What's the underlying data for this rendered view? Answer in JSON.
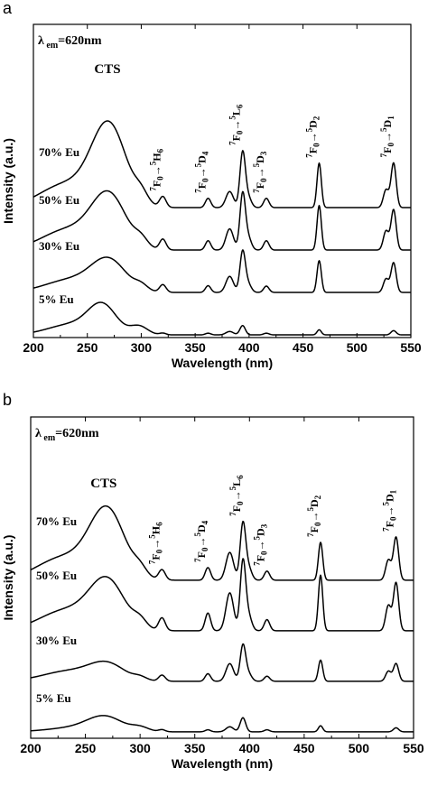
{
  "panels": [
    {
      "letter": "a",
      "lambda_main": "λ",
      "lambda_sub": "em",
      "lambda_rest": "=620nm",
      "cts_label": "CTS"
    },
    {
      "letter": "b",
      "lambda_main": "λ",
      "lambda_sub": "em",
      "lambda_rest": "=620nm",
      "cts_label": "CTS"
    }
  ],
  "chart_data": [
    {
      "type": "line",
      "xlabel": "Wavelength (nm)",
      "ylabel": "Intensity (a.u.)",
      "xlim": [
        200,
        550
      ],
      "xticks": [
        "200",
        "250",
        "300",
        "350",
        "400",
        "450",
        "500",
        "550"
      ],
      "grid": false,
      "annotations": [
        {
          "label": "CTS",
          "x": 272
        },
        {
          "label": "7F0→5H6",
          "x": 320
        },
        {
          "label": "7F0→5D4",
          "x": 362
        },
        {
          "label": "7F0→5L6",
          "x": 394
        },
        {
          "label": "7F0→5D3",
          "x": 416
        },
        {
          "label": "7F0→5D2",
          "x": 465
        },
        {
          "label": "7F0→5D1",
          "x": 534
        }
      ],
      "series": [
        {
          "name": "70% Eu",
          "offset": 3.0,
          "peaks": [
            {
              "x": 230,
              "h": 0.55,
              "w": 24
            },
            {
              "x": 270,
              "h": 1.9,
              "w": 16
            },
            {
              "x": 300,
              "h": 0.22,
              "w": 6
            },
            {
              "x": 320,
              "h": 0.25,
              "w": 3
            },
            {
              "x": 362,
              "h": 0.22,
              "w": 2.5
            },
            {
              "x": 382,
              "h": 0.38,
              "w": 3.5
            },
            {
              "x": 394,
              "h": 1.28,
              "w": 2.5
            },
            {
              "x": 399,
              "h": 0.25,
              "w": 3
            },
            {
              "x": 416,
              "h": 0.22,
              "w": 2.5
            },
            {
              "x": 465,
              "h": 1.05,
              "w": 2
            },
            {
              "x": 527,
              "h": 0.42,
              "w": 2.5
            },
            {
              "x": 534,
              "h": 1.05,
              "w": 2.4
            }
          ]
        },
        {
          "name": "50% Eu",
          "offset": 2.0,
          "peaks": [
            {
              "x": 232,
              "h": 0.48,
              "w": 24
            },
            {
              "x": 270,
              "h": 1.25,
              "w": 16
            },
            {
              "x": 300,
              "h": 0.18,
              "w": 6
            },
            {
              "x": 320,
              "h": 0.25,
              "w": 3
            },
            {
              "x": 362,
              "h": 0.22,
              "w": 2.5
            },
            {
              "x": 382,
              "h": 0.5,
              "w": 3.5
            },
            {
              "x": 394,
              "h": 1.3,
              "w": 2.5
            },
            {
              "x": 399,
              "h": 0.3,
              "w": 3
            },
            {
              "x": 416,
              "h": 0.22,
              "w": 2.5
            },
            {
              "x": 465,
              "h": 1.05,
              "w": 2
            },
            {
              "x": 527,
              "h": 0.45,
              "w": 2.5
            },
            {
              "x": 534,
              "h": 0.95,
              "w": 2.4
            }
          ]
        },
        {
          "name": "30% Eu",
          "offset": 1.0,
          "peaks": [
            {
              "x": 235,
              "h": 0.3,
              "w": 24
            },
            {
              "x": 270,
              "h": 0.72,
              "w": 16
            },
            {
              "x": 300,
              "h": 0.12,
              "w": 6
            },
            {
              "x": 320,
              "h": 0.18,
              "w": 3
            },
            {
              "x": 362,
              "h": 0.16,
              "w": 2.5
            },
            {
              "x": 382,
              "h": 0.38,
              "w": 3.5
            },
            {
              "x": 394,
              "h": 0.95,
              "w": 2.5
            },
            {
              "x": 399,
              "h": 0.2,
              "w": 3
            },
            {
              "x": 416,
              "h": 0.15,
              "w": 2.5
            },
            {
              "x": 465,
              "h": 0.75,
              "w": 2
            },
            {
              "x": 527,
              "h": 0.32,
              "w": 2.5
            },
            {
              "x": 534,
              "h": 0.7,
              "w": 2.4
            }
          ]
        },
        {
          "name": "5% Eu",
          "offset": 0.0,
          "peaks": [
            {
              "x": 236,
              "h": 0.25,
              "w": 22
            },
            {
              "x": 264,
              "h": 0.65,
              "w": 13
            },
            {
              "x": 298,
              "h": 0.2,
              "w": 8
            },
            {
              "x": 320,
              "h": 0.04,
              "w": 3
            },
            {
              "x": 362,
              "h": 0.04,
              "w": 2.5
            },
            {
              "x": 382,
              "h": 0.08,
              "w": 3.5
            },
            {
              "x": 394,
              "h": 0.22,
              "w": 2.5
            },
            {
              "x": 416,
              "h": 0.04,
              "w": 2.5
            },
            {
              "x": 465,
              "h": 0.12,
              "w": 2
            },
            {
              "x": 534,
              "h": 0.1,
              "w": 2.4
            }
          ]
        }
      ]
    },
    {
      "type": "line",
      "xlabel": "Wavelength (nm)",
      "ylabel": "Intensity (a.u.)",
      "xlim": [
        200,
        550
      ],
      "xticks": [
        "200",
        "250",
        "300",
        "350",
        "400",
        "450",
        "500",
        "550"
      ],
      "grid": false,
      "annotations": [
        {
          "label": "CTS",
          "x": 270
        },
        {
          "label": "7F0→5H6",
          "x": 320
        },
        {
          "label": "7F0→5D4",
          "x": 362
        },
        {
          "label": "7F0→5L6",
          "x": 394
        },
        {
          "label": "7F0→5D3",
          "x": 416
        },
        {
          "label": "7F0→5D2",
          "x": 465
        },
        {
          "label": "7F0→5D1",
          "x": 534
        }
      ],
      "series": [
        {
          "name": "70% Eu",
          "offset": 3.0,
          "peaks": [
            {
              "x": 230,
              "h": 0.45,
              "w": 24
            },
            {
              "x": 270,
              "h": 1.35,
              "w": 16
            },
            {
              "x": 300,
              "h": 0.15,
              "w": 6
            },
            {
              "x": 320,
              "h": 0.2,
              "w": 3
            },
            {
              "x": 362,
              "h": 0.25,
              "w": 2.5
            },
            {
              "x": 382,
              "h": 0.55,
              "w": 3.5
            },
            {
              "x": 394,
              "h": 1.1,
              "w": 2.5
            },
            {
              "x": 399,
              "h": 0.25,
              "w": 3
            },
            {
              "x": 416,
              "h": 0.18,
              "w": 2.5
            },
            {
              "x": 465,
              "h": 0.75,
              "w": 2
            },
            {
              "x": 527,
              "h": 0.4,
              "w": 2.5
            },
            {
              "x": 534,
              "h": 0.85,
              "w": 2.4
            }
          ]
        },
        {
          "name": "50% Eu",
          "offset": 2.0,
          "peaks": [
            {
              "x": 232,
              "h": 0.4,
              "w": 24
            },
            {
              "x": 270,
              "h": 0.95,
              "w": 16
            },
            {
              "x": 300,
              "h": 0.15,
              "w": 6
            },
            {
              "x": 320,
              "h": 0.25,
              "w": 3
            },
            {
              "x": 362,
              "h": 0.35,
              "w": 2.5
            },
            {
              "x": 382,
              "h": 0.75,
              "w": 3.5
            },
            {
              "x": 394,
              "h": 1.35,
              "w": 2.5
            },
            {
              "x": 399,
              "h": 0.3,
              "w": 3
            },
            {
              "x": 416,
              "h": 0.22,
              "w": 2.5
            },
            {
              "x": 465,
              "h": 1.1,
              "w": 2
            },
            {
              "x": 527,
              "h": 0.5,
              "w": 2.5
            },
            {
              "x": 534,
              "h": 0.95,
              "w": 2.4
            }
          ]
        },
        {
          "name": "30% Eu",
          "offset": 1.0,
          "peaks": [
            {
              "x": 235,
              "h": 0.2,
              "w": 24
            },
            {
              "x": 270,
              "h": 0.32,
              "w": 16
            },
            {
              "x": 300,
              "h": 0.06,
              "w": 6
            },
            {
              "x": 320,
              "h": 0.12,
              "w": 3
            },
            {
              "x": 362,
              "h": 0.15,
              "w": 2.5
            },
            {
              "x": 382,
              "h": 0.35,
              "w": 3.5
            },
            {
              "x": 394,
              "h": 0.7,
              "w": 2.5
            },
            {
              "x": 399,
              "h": 0.15,
              "w": 3
            },
            {
              "x": 416,
              "h": 0.1,
              "w": 2.5
            },
            {
              "x": 465,
              "h": 0.42,
              "w": 2
            },
            {
              "x": 527,
              "h": 0.2,
              "w": 2.5
            },
            {
              "x": 534,
              "h": 0.35,
              "w": 2.4
            }
          ]
        },
        {
          "name": "5% Eu",
          "offset": 0.0,
          "peaks": [
            {
              "x": 240,
              "h": 0.08,
              "w": 24
            },
            {
              "x": 268,
              "h": 0.28,
              "w": 16
            },
            {
              "x": 300,
              "h": 0.08,
              "w": 8
            },
            {
              "x": 320,
              "h": 0.04,
              "w": 3
            },
            {
              "x": 362,
              "h": 0.04,
              "w": 2.5
            },
            {
              "x": 382,
              "h": 0.1,
              "w": 3.5
            },
            {
              "x": 394,
              "h": 0.28,
              "w": 2.5
            },
            {
              "x": 416,
              "h": 0.04,
              "w": 2.5
            },
            {
              "x": 465,
              "h": 0.12,
              "w": 2
            },
            {
              "x": 534,
              "h": 0.08,
              "w": 2.4
            }
          ]
        }
      ]
    }
  ]
}
